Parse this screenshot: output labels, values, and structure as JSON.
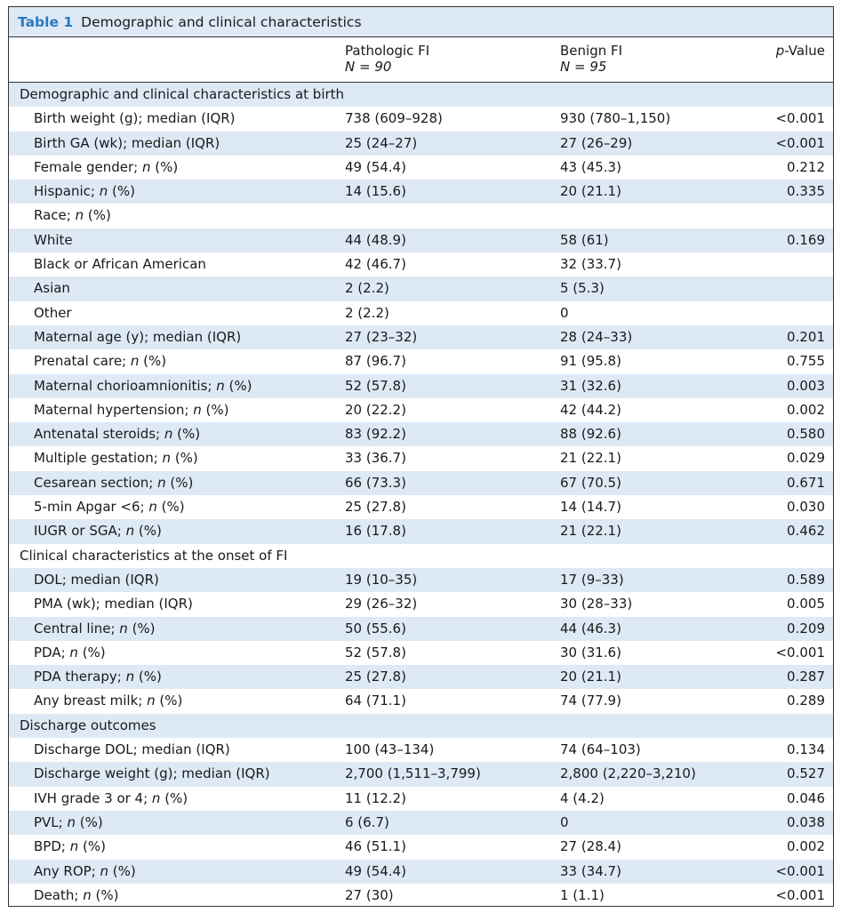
{
  "table": {
    "label": "Table 1",
    "title": "Demographic and clinical characteristics",
    "headers": {
      "col1": "Pathologic FI",
      "col1_n": "N = 90",
      "col2": "Benign FI",
      "col2_n": "N = 95",
      "col3_italic": "p",
      "col3_rest": "-Value"
    },
    "rows": [
      {
        "type": "section",
        "label": "Demographic and clinical characteristics at birth"
      },
      {
        "label": "Birth weight (g); median (IQR)",
        "v1": "738 (609–928)",
        "v2": "930 (780–1,150)",
        "p": "<0.001"
      },
      {
        "label": "Birth GA (wk); median (IQR)",
        "v1": "25 (24–27)",
        "v2": "27 (26–29)",
        "p": "<0.001"
      },
      {
        "label": "Female gender; ",
        "ital": "n",
        "tail": " (%)",
        "v1": "49 (54.4)",
        "v2": "43 (45.3)",
        "p": "0.212"
      },
      {
        "label": "Hispanic; ",
        "ital": "n",
        "tail": " (%)",
        "v1": "14 (15.6)",
        "v2": "20 (21.1)",
        "p": "0.335"
      },
      {
        "label": "Race; ",
        "ital": "n",
        "tail": " (%)",
        "v1": "",
        "v2": "",
        "p": ""
      },
      {
        "label": "White",
        "v1": "44 (48.9)",
        "v2": "58 (61)",
        "p": "0.169"
      },
      {
        "label": "Black or African American",
        "v1": "42 (46.7)",
        "v2": "32 (33.7)",
        "p": "",
        "partial": true
      },
      {
        "label": "Asian",
        "v1": "2 (2.2)",
        "v2": "5 (5.3)",
        "p": ""
      },
      {
        "label": "Other",
        "v1": "2 (2.2)",
        "v2": "0",
        "p": "",
        "partial": true
      },
      {
        "label": "Maternal age (y); median (IQR)",
        "v1": "27 (23–32)",
        "v2": "28 (24–33)",
        "p": "0.201"
      },
      {
        "label": "Prenatal care; ",
        "ital": "n",
        "tail": " (%)",
        "v1": "87 (96.7)",
        "v2": "91 (95.8)",
        "p": "0.755"
      },
      {
        "label": "Maternal chorioamnionitis; ",
        "ital": "n",
        "tail": " (%)",
        "v1": "52 (57.8)",
        "v2": "31 (32.6)",
        "p": "0.003"
      },
      {
        "label": "Maternal hypertension; ",
        "ital": "n",
        "tail": " (%)",
        "v1": "20 (22.2)",
        "v2": "42 (44.2)",
        "p": "0.002"
      },
      {
        "label": "Antenatal steroids; ",
        "ital": "n",
        "tail": " (%)",
        "v1": "83 (92.2)",
        "v2": "88 (92.6)",
        "p": "0.580"
      },
      {
        "label": "Multiple gestation; ",
        "ital": "n",
        "tail": " (%)",
        "v1": "33 (36.7)",
        "v2": "21 (22.1)",
        "p": "0.029"
      },
      {
        "label": "Cesarean section; ",
        "ital": "n",
        "tail": " (%)",
        "v1": "66 (73.3)",
        "v2": "67 (70.5)",
        "p": "0.671"
      },
      {
        "label": "5-min Apgar <6; ",
        "ital": "n",
        "tail": " (%)",
        "v1": "25 (27.8)",
        "v2": "14 (14.7)",
        "p": "0.030"
      },
      {
        "label": "IUGR or SGA; ",
        "ital": "n",
        "tail": " (%)",
        "v1": "16 (17.8)",
        "v2": "21 (22.1)",
        "p": "0.462"
      },
      {
        "type": "section",
        "label": "Clinical characteristics at the onset of FI"
      },
      {
        "label": "DOL; median (IQR)",
        "v1": "19 (10–35)",
        "v2": "17 (9–33)",
        "p": "0.589"
      },
      {
        "label": "PMA (wk); median (IQR)",
        "v1": "29 (26–32)",
        "v2": "30 (28–33)",
        "p": "0.005"
      },
      {
        "label": "Central line; ",
        "ital": "n",
        "tail": " (%)",
        "v1": "50 (55.6)",
        "v2": "44 (46.3)",
        "p": "0.209"
      },
      {
        "label": "PDA; ",
        "ital": "n",
        "tail": " (%)",
        "v1": "52 (57.8)",
        "v2": "30 (31.6)",
        "p": "<0.001"
      },
      {
        "label": "PDA therapy; ",
        "ital": "n",
        "tail": " (%)",
        "v1": "25 (27.8)",
        "v2": "20 (21.1)",
        "p": "0.287"
      },
      {
        "label": "Any breast milk; ",
        "ital": "n",
        "tail": " (%)",
        "v1": "64 (71.1)",
        "v2": "74 (77.9)",
        "p": "0.289"
      },
      {
        "type": "section",
        "label": "Discharge outcomes"
      },
      {
        "label": "Discharge DOL; median (IQR)",
        "v1": "100 (43–134)",
        "v2": "74 (64–103)",
        "p": "0.134"
      },
      {
        "label": "Discharge weight (g); median (IQR)",
        "v1": "2,700 (1,511–3,799)",
        "v2": "2,800 (2,220–3,210)",
        "p": "0.527"
      },
      {
        "label": "IVH grade 3 or 4; ",
        "ital": "n",
        "tail": " (%)",
        "v1": "11 (12.2)",
        "v2": "4 (4.2)",
        "p": "0.046"
      },
      {
        "label": "PVL; ",
        "ital": "n",
        "tail": " (%)",
        "v1": "6 (6.7)",
        "v2": "0",
        "p": "0.038"
      },
      {
        "label": "BPD; ",
        "ital": "n",
        "tail": " (%)",
        "v1": "46 (51.1)",
        "v2": "27 (28.4)",
        "p": "0.002"
      },
      {
        "label": "Any ROP; ",
        "ital": "n",
        "tail": " (%)",
        "v1": "49 (54.4)",
        "v2": "33 (34.7)",
        "p": "<0.001"
      },
      {
        "label": "Death; ",
        "ital": "n",
        "tail": " (%)",
        "v1": "27 (30)",
        "v2": "1 (1.1)",
        "p": "<0.001"
      }
    ]
  }
}
